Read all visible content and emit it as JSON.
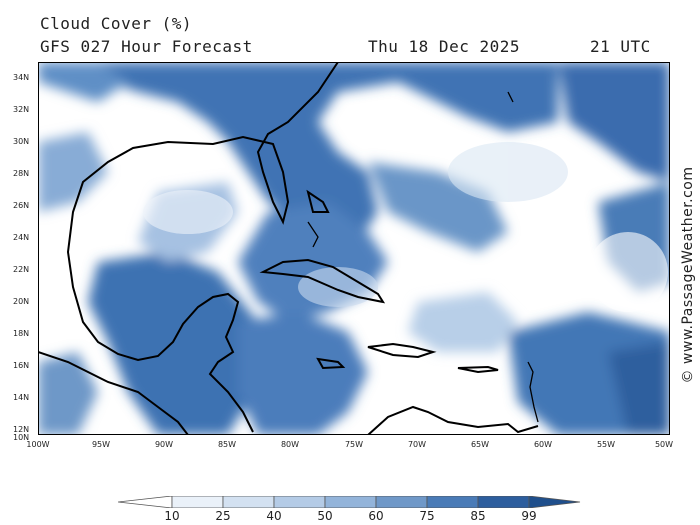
{
  "header": {
    "title": "Cloud Cover (%)",
    "subtitle": "GFS 027 Hour Forecast",
    "date": "Thu 18 Dec 2025",
    "time": "21 UTC"
  },
  "map": {
    "lat_labels": [
      "34N",
      "32N",
      "30N",
      "28N",
      "26N",
      "24N",
      "22N",
      "20N",
      "18N",
      "16N",
      "14N",
      "12N",
      "10N"
    ],
    "lon_labels": [
      "100W",
      "95W",
      "90W",
      "85W",
      "80W",
      "75W",
      "70W",
      "65W",
      "60W",
      "55W",
      "50W"
    ],
    "lat_range": [
      10,
      35
    ],
    "lon_range": [
      -100,
      -50
    ],
    "ocean_color": "#ffffff",
    "coast_color": "#000000"
  },
  "legend": {
    "labels": [
      "10",
      "25",
      "40",
      "50",
      "60",
      "75",
      "85",
      "99"
    ],
    "colors": [
      "#ffffff",
      "#eaf1f9",
      "#d3e1f1",
      "#b4cbe6",
      "#93b4da",
      "#6f98c8",
      "#4a7bb7",
      "#2d5e9e",
      "#1f4f8c"
    ]
  },
  "watermark": "© www.PassageWeather.com"
}
